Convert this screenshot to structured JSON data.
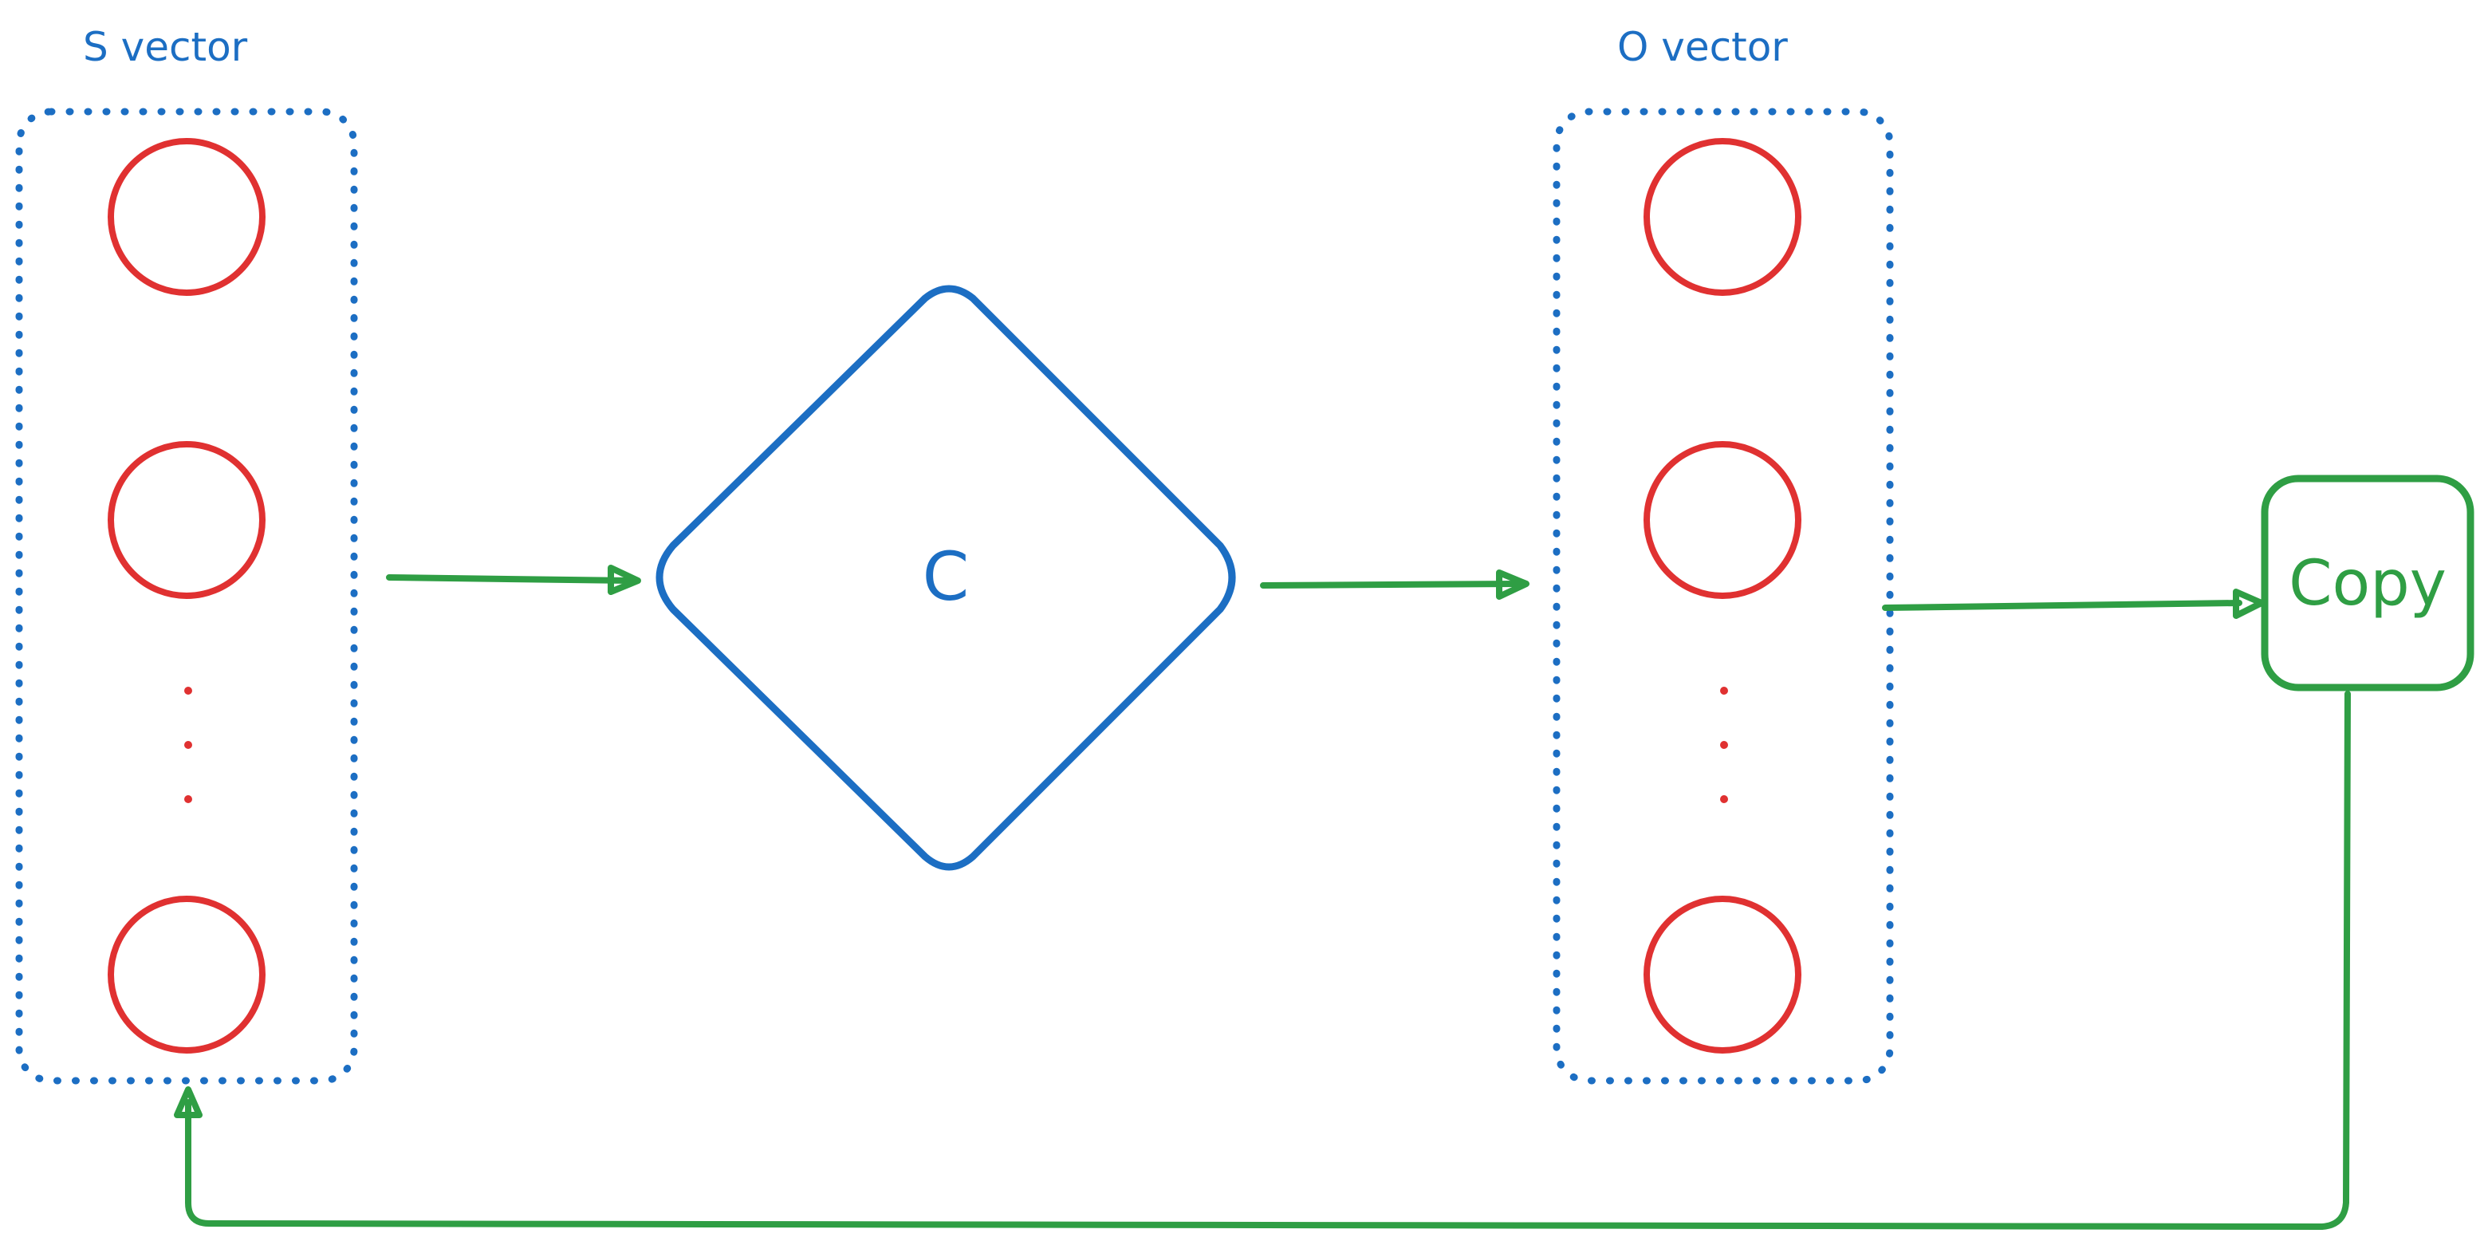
{
  "colors": {
    "blue": "#1c6ec3",
    "red": "#e03131",
    "green": "#2f9e44"
  },
  "s_vector": {
    "label": "S vector",
    "node_count_visible": 3,
    "has_ellipsis": true
  },
  "process": {
    "label": "C",
    "shape": "diamond"
  },
  "o_vector": {
    "label": "O vector",
    "node_count_visible": 3,
    "has_ellipsis": true
  },
  "copy": {
    "label": "Copy"
  },
  "flow": [
    {
      "from": "S vector",
      "to": "C"
    },
    {
      "from": "C",
      "to": "O vector"
    },
    {
      "from": "O vector",
      "to": "Copy"
    },
    {
      "from": "Copy",
      "to": "S vector"
    }
  ]
}
